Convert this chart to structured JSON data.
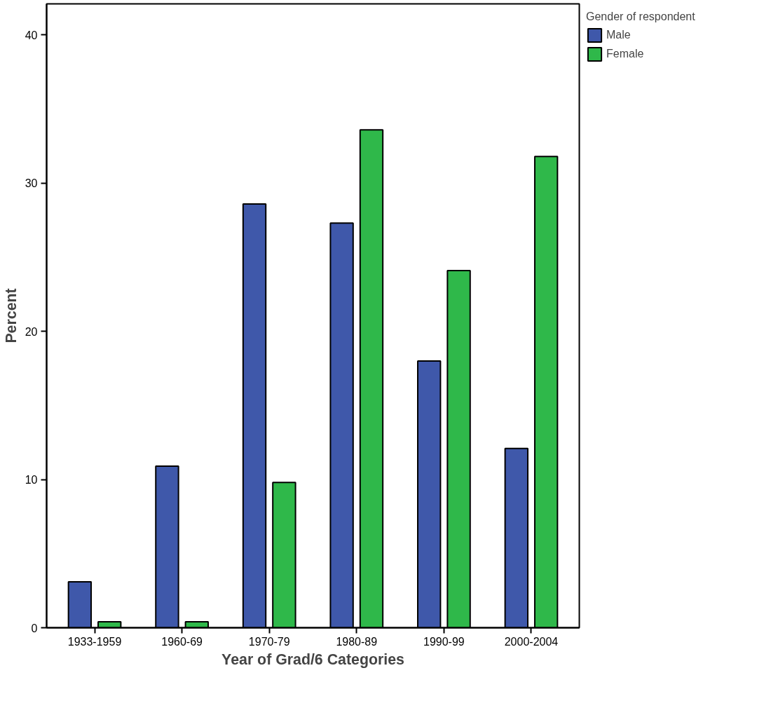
{
  "chart_data": {
    "type": "bar",
    "xlabel": "Year of Grad/6 Categories",
    "ylabel": "Percent",
    "legend_title": "Gender of respondent",
    "categories": [
      "1933-1959",
      "1960-69",
      "1970-79",
      "1980-89",
      "1990-99",
      "2000-2004"
    ],
    "series": [
      {
        "name": "Male",
        "color": "#3f58aa",
        "values": [
          3.1,
          10.9,
          28.6,
          27.3,
          18.0,
          12.1
        ]
      },
      {
        "name": "Female",
        "color": "#2fb84a",
        "values": [
          0.4,
          0.4,
          9.8,
          33.6,
          24.1,
          31.8
        ]
      }
    ],
    "ylim": [
      0,
      42.1
    ],
    "yticks": [
      0,
      10,
      20,
      30,
      40
    ],
    "grid": false,
    "legend": "top right"
  }
}
